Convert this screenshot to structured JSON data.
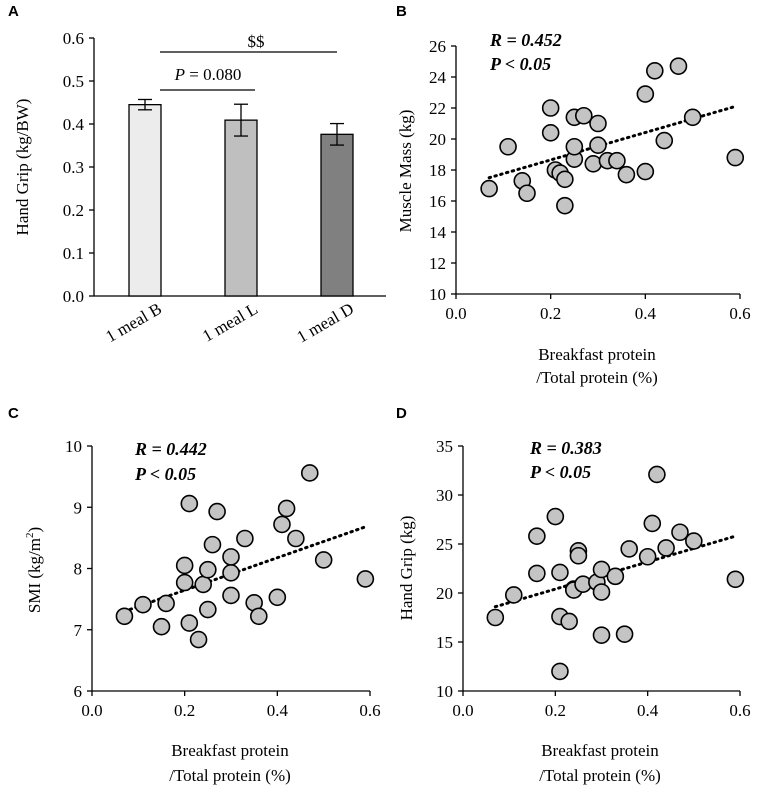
{
  "chart_data": [
    {
      "panel": "A",
      "type": "bar",
      "categories": [
        "1 meal B",
        "1 meal L",
        "1 meal D"
      ],
      "values": [
        0.445,
        0.409,
        0.376
      ],
      "errors": [
        0.012,
        0.037,
        0.025
      ],
      "colors": [
        "#ececec",
        "#bfbfbf",
        "#808080"
      ],
      "ylabel": "Hand Grip (kg/BW)",
      "ylim": [
        0,
        0.6
      ],
      "yticks": [
        "0.0",
        "0.1",
        "0.2",
        "0.3",
        "0.4",
        "0.5",
        "0.6"
      ],
      "annotations": {
        "bl_prefix": "P",
        "bl_suffix": " = 0.080",
        "bd": "$$"
      }
    },
    {
      "panel": "B",
      "type": "scatter",
      "xlabel_line1": "Breakfast protein",
      "xlabel_line2": "/Total protein (%)",
      "ylabel": "Muscle Mass (kg)",
      "xlim": [
        0,
        0.6
      ],
      "ylim": [
        10,
        26
      ],
      "xticks": [
        "0.0",
        "0.2",
        "0.4",
        "0.6"
      ],
      "yticks": [
        "10",
        "12",
        "14",
        "16",
        "18",
        "20",
        "22",
        "24",
        "26"
      ],
      "stat_r": "R = 0.452",
      "stat_p": "P < 0.05",
      "trend": [
        [
          0.07,
          17.5
        ],
        [
          0.59,
          22.1
        ]
      ],
      "points": [
        [
          0.07,
          16.8
        ],
        [
          0.11,
          19.5
        ],
        [
          0.14,
          17.3
        ],
        [
          0.15,
          16.5
        ],
        [
          0.2,
          20.4
        ],
        [
          0.2,
          22.0
        ],
        [
          0.21,
          18.0
        ],
        [
          0.22,
          17.8
        ],
        [
          0.23,
          17.4
        ],
        [
          0.23,
          15.7
        ],
        [
          0.25,
          18.7
        ],
        [
          0.25,
          19.5
        ],
        [
          0.25,
          21.4
        ],
        [
          0.27,
          21.5
        ],
        [
          0.29,
          18.4
        ],
        [
          0.3,
          19.6
        ],
        [
          0.3,
          21.0
        ],
        [
          0.32,
          18.6
        ],
        [
          0.34,
          18.6
        ],
        [
          0.36,
          17.7
        ],
        [
          0.4,
          17.9
        ],
        [
          0.4,
          22.9
        ],
        [
          0.42,
          24.4
        ],
        [
          0.44,
          19.9
        ],
        [
          0.47,
          24.7
        ],
        [
          0.5,
          21.4
        ],
        [
          0.59,
          18.8
        ]
      ]
    },
    {
      "panel": "C",
      "type": "scatter",
      "xlabel_line1": "Breakfast protein",
      "xlabel_line2": "/Total protein (%)",
      "ylabel_main": "SMI (kg/m",
      "ylabel_sup": "2",
      "ylabel_end": ")",
      "xlim": [
        0,
        0.6
      ],
      "ylim": [
        6,
        10
      ],
      "xticks": [
        "0.0",
        "0.2",
        "0.4",
        "0.6"
      ],
      "yticks": [
        "6",
        "7",
        "8",
        "9",
        "10"
      ],
      "stat_r": "R = 0.442",
      "stat_p": "P < 0.05",
      "trend": [
        [
          0.07,
          7.3
        ],
        [
          0.59,
          8.68
        ]
      ],
      "points": [
        [
          0.07,
          7.22
        ],
        [
          0.11,
          7.41
        ],
        [
          0.15,
          7.05
        ],
        [
          0.16,
          7.43
        ],
        [
          0.2,
          7.77
        ],
        [
          0.2,
          8.05
        ],
        [
          0.21,
          9.06
        ],
        [
          0.21,
          7.11
        ],
        [
          0.23,
          6.84
        ],
        [
          0.24,
          7.74
        ],
        [
          0.25,
          7.33
        ],
        [
          0.25,
          7.98
        ],
        [
          0.26,
          8.39
        ],
        [
          0.27,
          8.93
        ],
        [
          0.3,
          7.56
        ],
        [
          0.3,
          7.93
        ],
        [
          0.3,
          8.19
        ],
        [
          0.33,
          8.49
        ],
        [
          0.35,
          7.44
        ],
        [
          0.36,
          7.22
        ],
        [
          0.4,
          7.53
        ],
        [
          0.41,
          8.72
        ],
        [
          0.42,
          8.98
        ],
        [
          0.44,
          8.49
        ],
        [
          0.47,
          9.56
        ],
        [
          0.5,
          8.14
        ],
        [
          0.59,
          7.83
        ]
      ]
    },
    {
      "panel": "D",
      "type": "scatter",
      "xlabel_line1": "Breakfast protein",
      "xlabel_line2": "/Total protein (%)",
      "ylabel": "Hand Grip (kg)",
      "xlim": [
        0,
        0.6
      ],
      "ylim": [
        10,
        35
      ],
      "xticks": [
        "0.0",
        "0.2",
        "0.4",
        "0.6"
      ],
      "yticks": [
        "10",
        "15",
        "20",
        "25",
        "30",
        "35"
      ],
      "stat_r": "R = 0.383",
      "stat_p": "P < 0.05",
      "trend": [
        [
          0.07,
          18.6
        ],
        [
          0.59,
          25.8
        ]
      ],
      "points": [
        [
          0.07,
          17.5
        ],
        [
          0.11,
          19.8
        ],
        [
          0.16,
          22.0
        ],
        [
          0.16,
          25.8
        ],
        [
          0.2,
          27.8
        ],
        [
          0.21,
          17.6
        ],
        [
          0.21,
          22.1
        ],
        [
          0.21,
          12.0
        ],
        [
          0.23,
          17.1
        ],
        [
          0.24,
          20.4
        ],
        [
          0.24,
          20.3
        ],
        [
          0.25,
          24.3
        ],
        [
          0.25,
          23.8
        ],
        [
          0.26,
          20.9
        ],
        [
          0.29,
          21.1
        ],
        [
          0.3,
          15.7
        ],
        [
          0.3,
          20.1
        ],
        [
          0.3,
          22.4
        ],
        [
          0.33,
          21.7
        ],
        [
          0.35,
          15.8
        ],
        [
          0.36,
          24.5
        ],
        [
          0.4,
          23.7
        ],
        [
          0.41,
          27.1
        ],
        [
          0.42,
          32.1
        ],
        [
          0.44,
          24.6
        ],
        [
          0.47,
          26.2
        ],
        [
          0.5,
          25.3
        ],
        [
          0.59,
          21.4
        ]
      ]
    }
  ]
}
